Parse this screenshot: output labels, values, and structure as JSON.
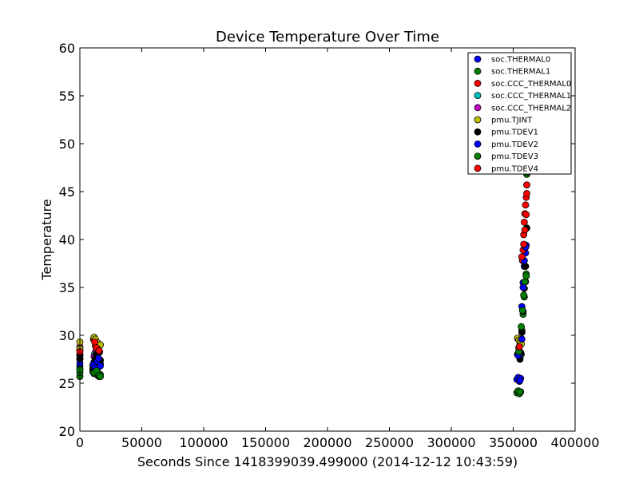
{
  "chart_data": {
    "type": "scatter",
    "title": "Device Temperature Over Time",
    "xlabel": "Seconds Since 1418399039.499000 (2014-12-12 10:43:59)",
    "ylabel": "Temperature",
    "xlim": [
      0,
      400000
    ],
    "ylim": [
      20,
      60
    ],
    "x_ticks": [
      "0",
      "50000",
      "100000",
      "150000",
      "200000",
      "250000",
      "300000",
      "350000",
      "400000"
    ],
    "y_ticks": [
      "20",
      "25",
      "30",
      "35",
      "40",
      "45",
      "50",
      "55",
      "60"
    ],
    "grid": false,
    "legend_position": "top-right",
    "series": [
      {
        "name": "soc.THERMAL0",
        "color": "#0000ff",
        "x": [
          0,
          0,
          0,
          10500,
          11500,
          12500,
          13500,
          14500,
          15500,
          16500,
          353000,
          354000,
          355000,
          356000,
          357000,
          358000,
          359000,
          360000,
          360500
        ],
        "y": [
          26.8,
          27.1,
          27.5,
          26.9,
          27.2,
          27.5,
          26.9,
          26.6,
          26.8,
          27.0,
          25.4,
          25.6,
          25.2,
          25.5,
          33.0,
          35.5,
          37.2,
          38.6,
          39.4
        ]
      },
      {
        "name": "soc.THERMAL1",
        "color": "#008000",
        "x": [
          0,
          0,
          0,
          10500,
          11500,
          12500,
          13500,
          14500,
          15500,
          16500,
          353000,
          354000,
          355000,
          356000,
          357000,
          358000,
          359000,
          360000,
          360500,
          361000
        ],
        "y": [
          25.7,
          26.1,
          26.5,
          26.2,
          26.0,
          26.3,
          26.1,
          25.8,
          25.7,
          25.9,
          24.0,
          24.2,
          23.9,
          24.1,
          30.5,
          32.2,
          34.0,
          35.6,
          36.4,
          46.8
        ]
      },
      {
        "name": "soc.CCC_THERMAL0",
        "color": "#ff0000",
        "x": [
          0,
          0,
          11000,
          12500,
          14000,
          16000,
          355500,
          357500,
          358000,
          358500,
          359000,
          359500,
          360000,
          360500,
          361000
        ],
        "y": [
          28.4,
          27.9,
          29.6,
          28.9,
          28.5,
          28.3,
          29.0,
          37.8,
          38.9,
          40.5,
          41.8,
          42.7,
          43.6,
          44.4,
          45.7
        ]
      },
      {
        "name": "soc.CCC_THERMAL1",
        "color": "#00bfbf",
        "x": [
          0,
          12000,
          14500,
          355000,
          356500
        ],
        "y": [
          27.6,
          28.1,
          27.7,
          28.3,
          28.0
        ]
      },
      {
        "name": "soc.CCC_THERMAL2",
        "color": "#bf00bf",
        "x": [
          0,
          11500,
          13000,
          15500,
          354500,
          356000
        ],
        "y": [
          28.8,
          27.8,
          28.4,
          27.3,
          28.7,
          28.1
        ]
      },
      {
        "name": "pmu.TJINT",
        "color": "#bfbf00",
        "x": [
          0,
          0,
          11500,
          12500,
          14500,
          16500,
          353500,
          354500,
          355500,
          356500
        ],
        "y": [
          29.3,
          28.6,
          29.8,
          29.6,
          29.2,
          29.0,
          29.7,
          29.5,
          29.3,
          29.1
        ]
      },
      {
        "name": "pmu.TDEV1",
        "color": "#000000",
        "x": [
          0,
          0,
          10500,
          11500,
          12500,
          13500,
          14500,
          15500,
          16500,
          353500,
          354500,
          355500,
          356000,
          357000,
          358000,
          359000,
          360000,
          361000
        ],
        "y": [
          28.0,
          27.6,
          26.5,
          27.0,
          27.6,
          28.0,
          28.5,
          28.2,
          27.4,
          28.0,
          27.9,
          27.5,
          28.2,
          30.3,
          32.5,
          34.9,
          37.2,
          41.2
        ]
      },
      {
        "name": "pmu.TDEV2",
        "color": "#0000ff",
        "x": [
          11000,
          12500,
          14000,
          15000,
          16500,
          354000,
          355500,
          357000,
          358000,
          359000,
          360000
        ],
        "y": [
          26.9,
          26.6,
          27.3,
          27.6,
          26.8,
          27.9,
          25.3,
          29.6,
          35.0,
          37.8,
          39.2
        ]
      },
      {
        "name": "pmu.TDEV3",
        "color": "#008000",
        "x": [
          0,
          11500,
          13500,
          15500,
          16500,
          354500,
          355500,
          356500,
          357500,
          358500,
          359500,
          360500,
          361000
        ],
        "y": [
          26.4,
          26.1,
          26.3,
          25.8,
          25.7,
          28.3,
          24.1,
          30.9,
          32.6,
          34.2,
          35.6,
          36.2,
          47.0
        ]
      },
      {
        "name": "pmu.TDEV4",
        "color": "#ff0000",
        "x": [
          0,
          12000,
          13500,
          15500,
          355000,
          357000,
          358500,
          359500,
          360500,
          361000
        ],
        "y": [
          28.3,
          29.3,
          28.7,
          28.4,
          28.8,
          38.2,
          39.5,
          41.0,
          42.6,
          44.8
        ]
      }
    ]
  }
}
